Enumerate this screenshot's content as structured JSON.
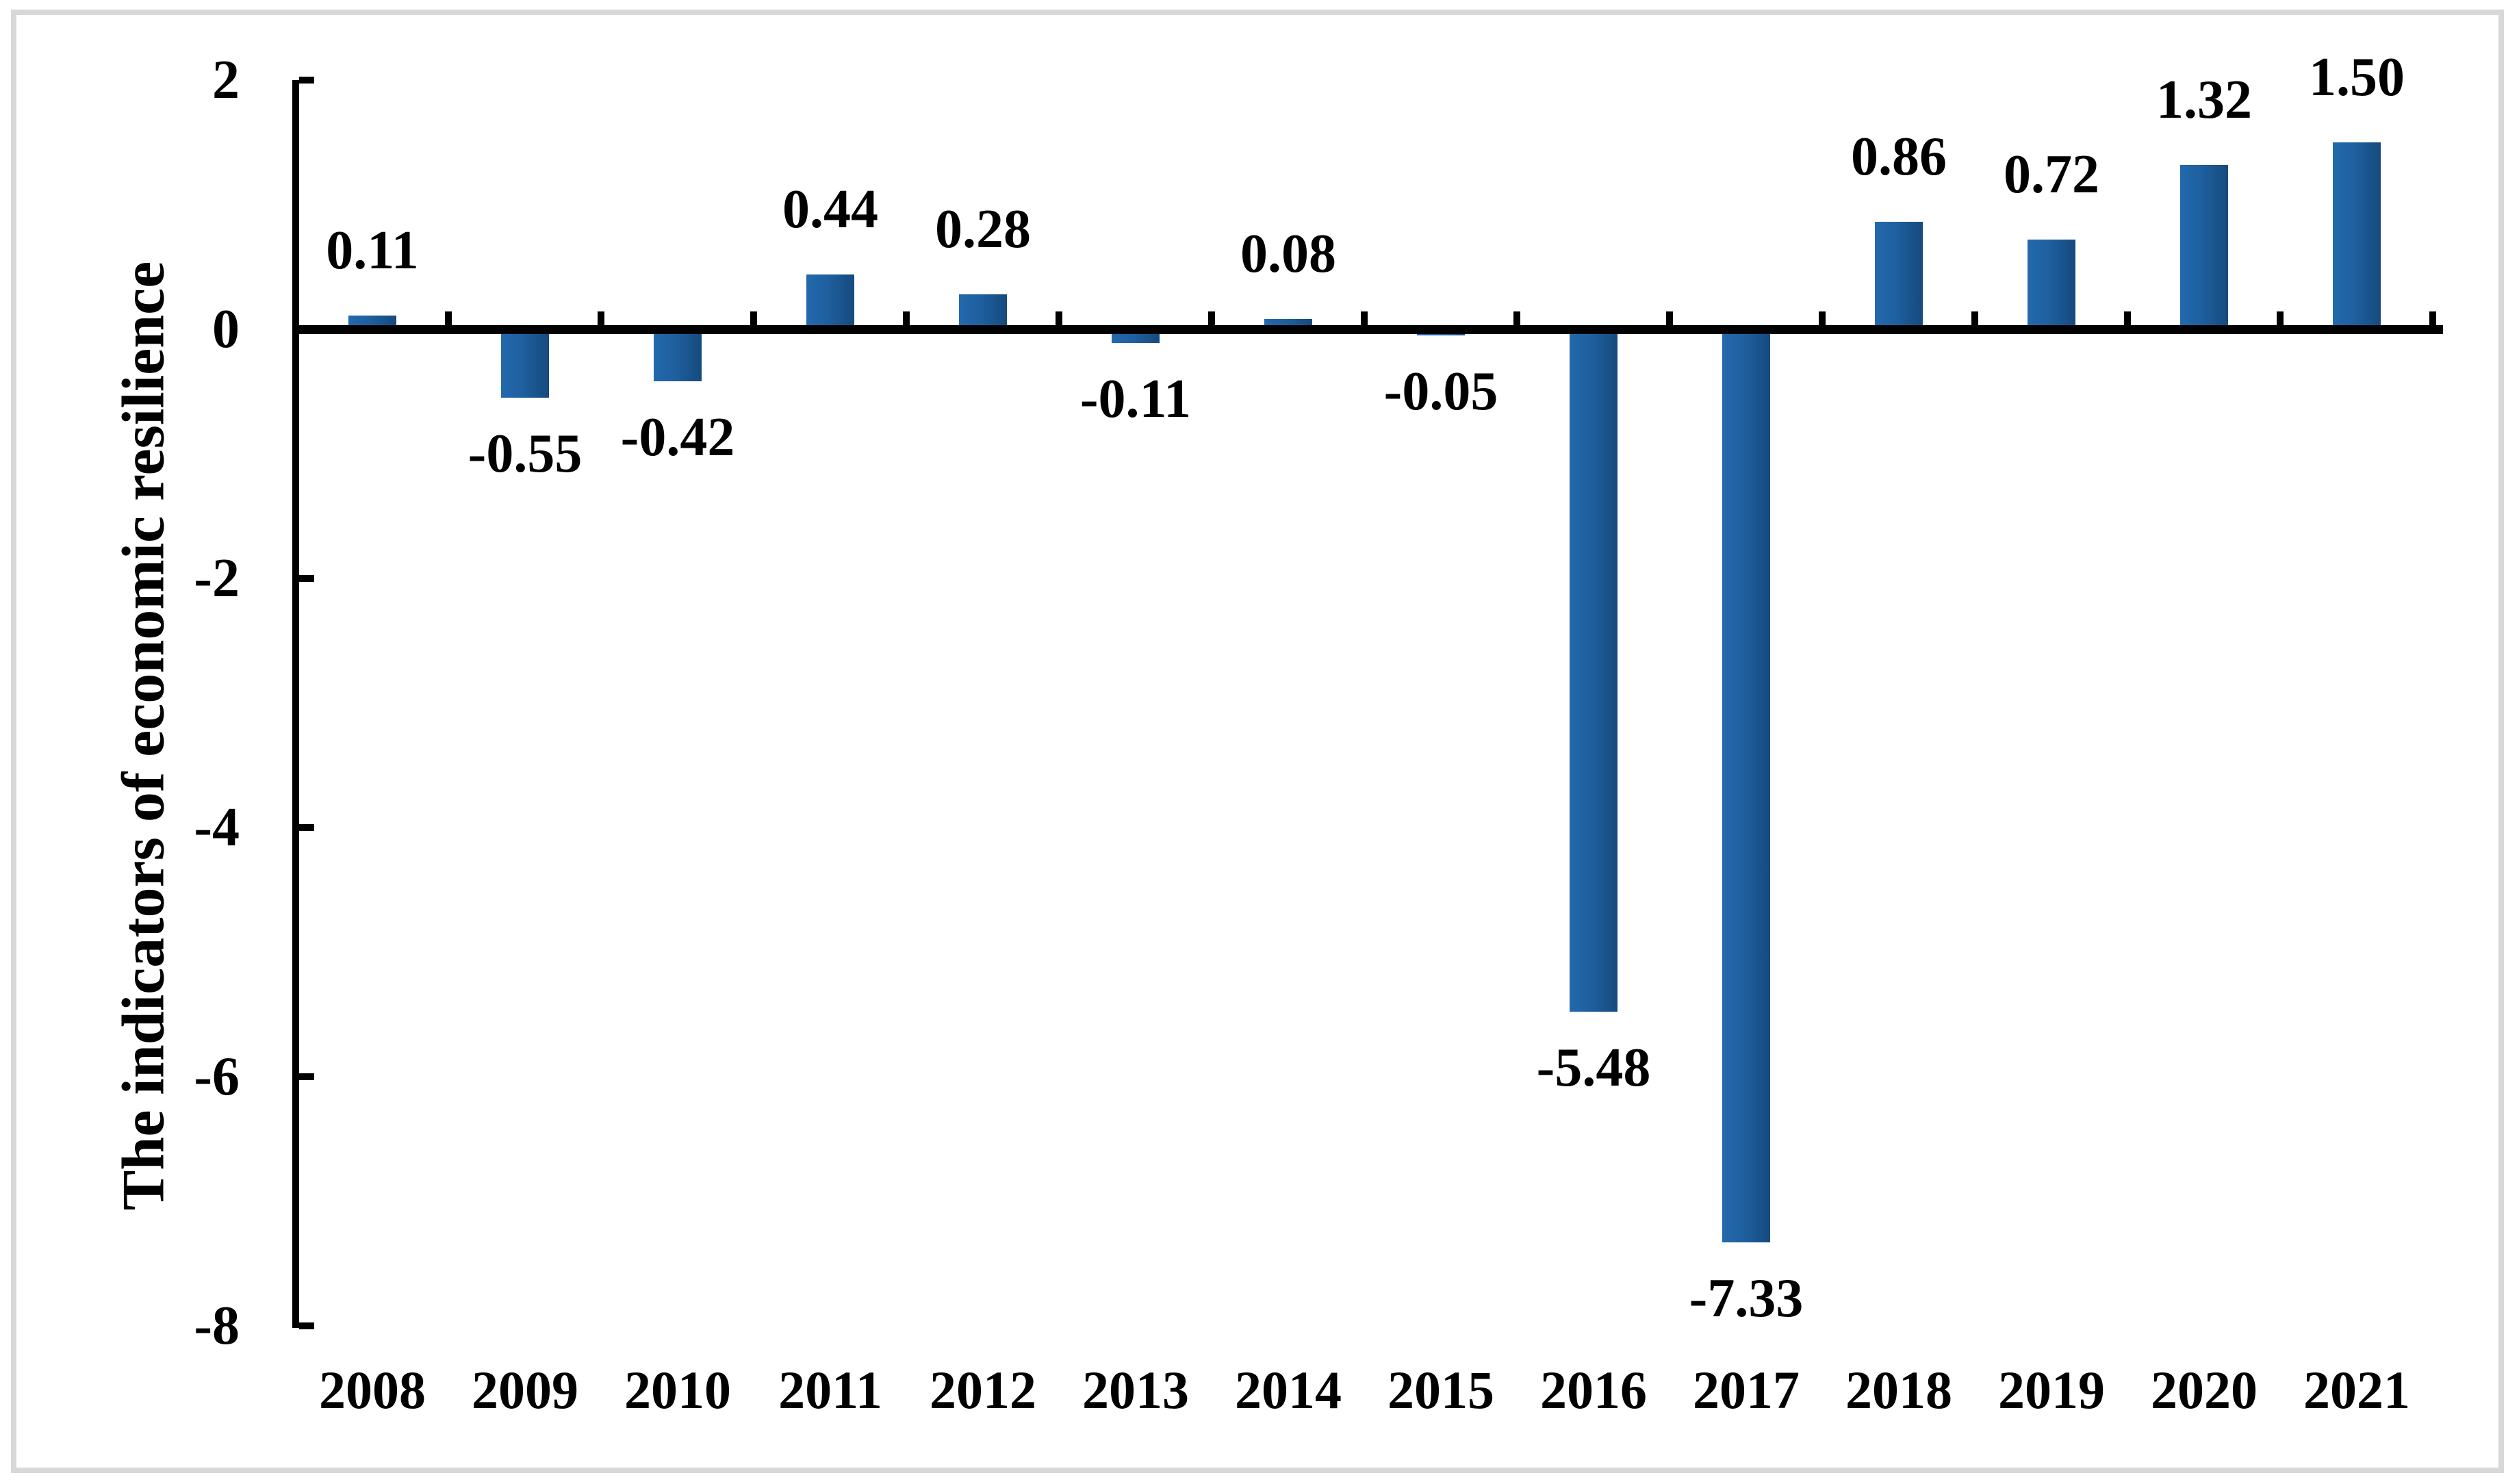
{
  "chart_data": {
    "type": "bar",
    "title": "",
    "xlabel": "",
    "ylabel": "The indicators of economic resilience",
    "categories": [
      "2008",
      "2009",
      "2010",
      "2011",
      "2012",
      "2013",
      "2014",
      "2015",
      "2016",
      "2017",
      "2018",
      "2019",
      "2020",
      "2021"
    ],
    "values": [
      0.11,
      -0.55,
      -0.42,
      0.44,
      0.28,
      -0.11,
      0.08,
      -0.05,
      -5.48,
      -7.33,
      0.86,
      0.72,
      1.32,
      1.5
    ],
    "labels": [
      "0.11",
      "-0.55",
      "-0.42",
      "0.44",
      "0.28",
      "-0.11",
      "0.08",
      "-0.05",
      "-5.48",
      "-7.33",
      "0.86",
      "0.72",
      "1.32",
      "1.50"
    ],
    "ylim": [
      -8,
      2
    ],
    "ytick_values": [
      2,
      0,
      -2,
      -4,
      -6,
      -8
    ],
    "ytick_labels": [
      "2",
      "0",
      "-2",
      "-4",
      "-6",
      "-8"
    ],
    "grid": false,
    "legend_position": "none",
    "bar_color_light": "#2369AD",
    "bar_color_dark": "#164A7D",
    "axis_color": "#000000",
    "frame_color": "#d8d8d8"
  }
}
